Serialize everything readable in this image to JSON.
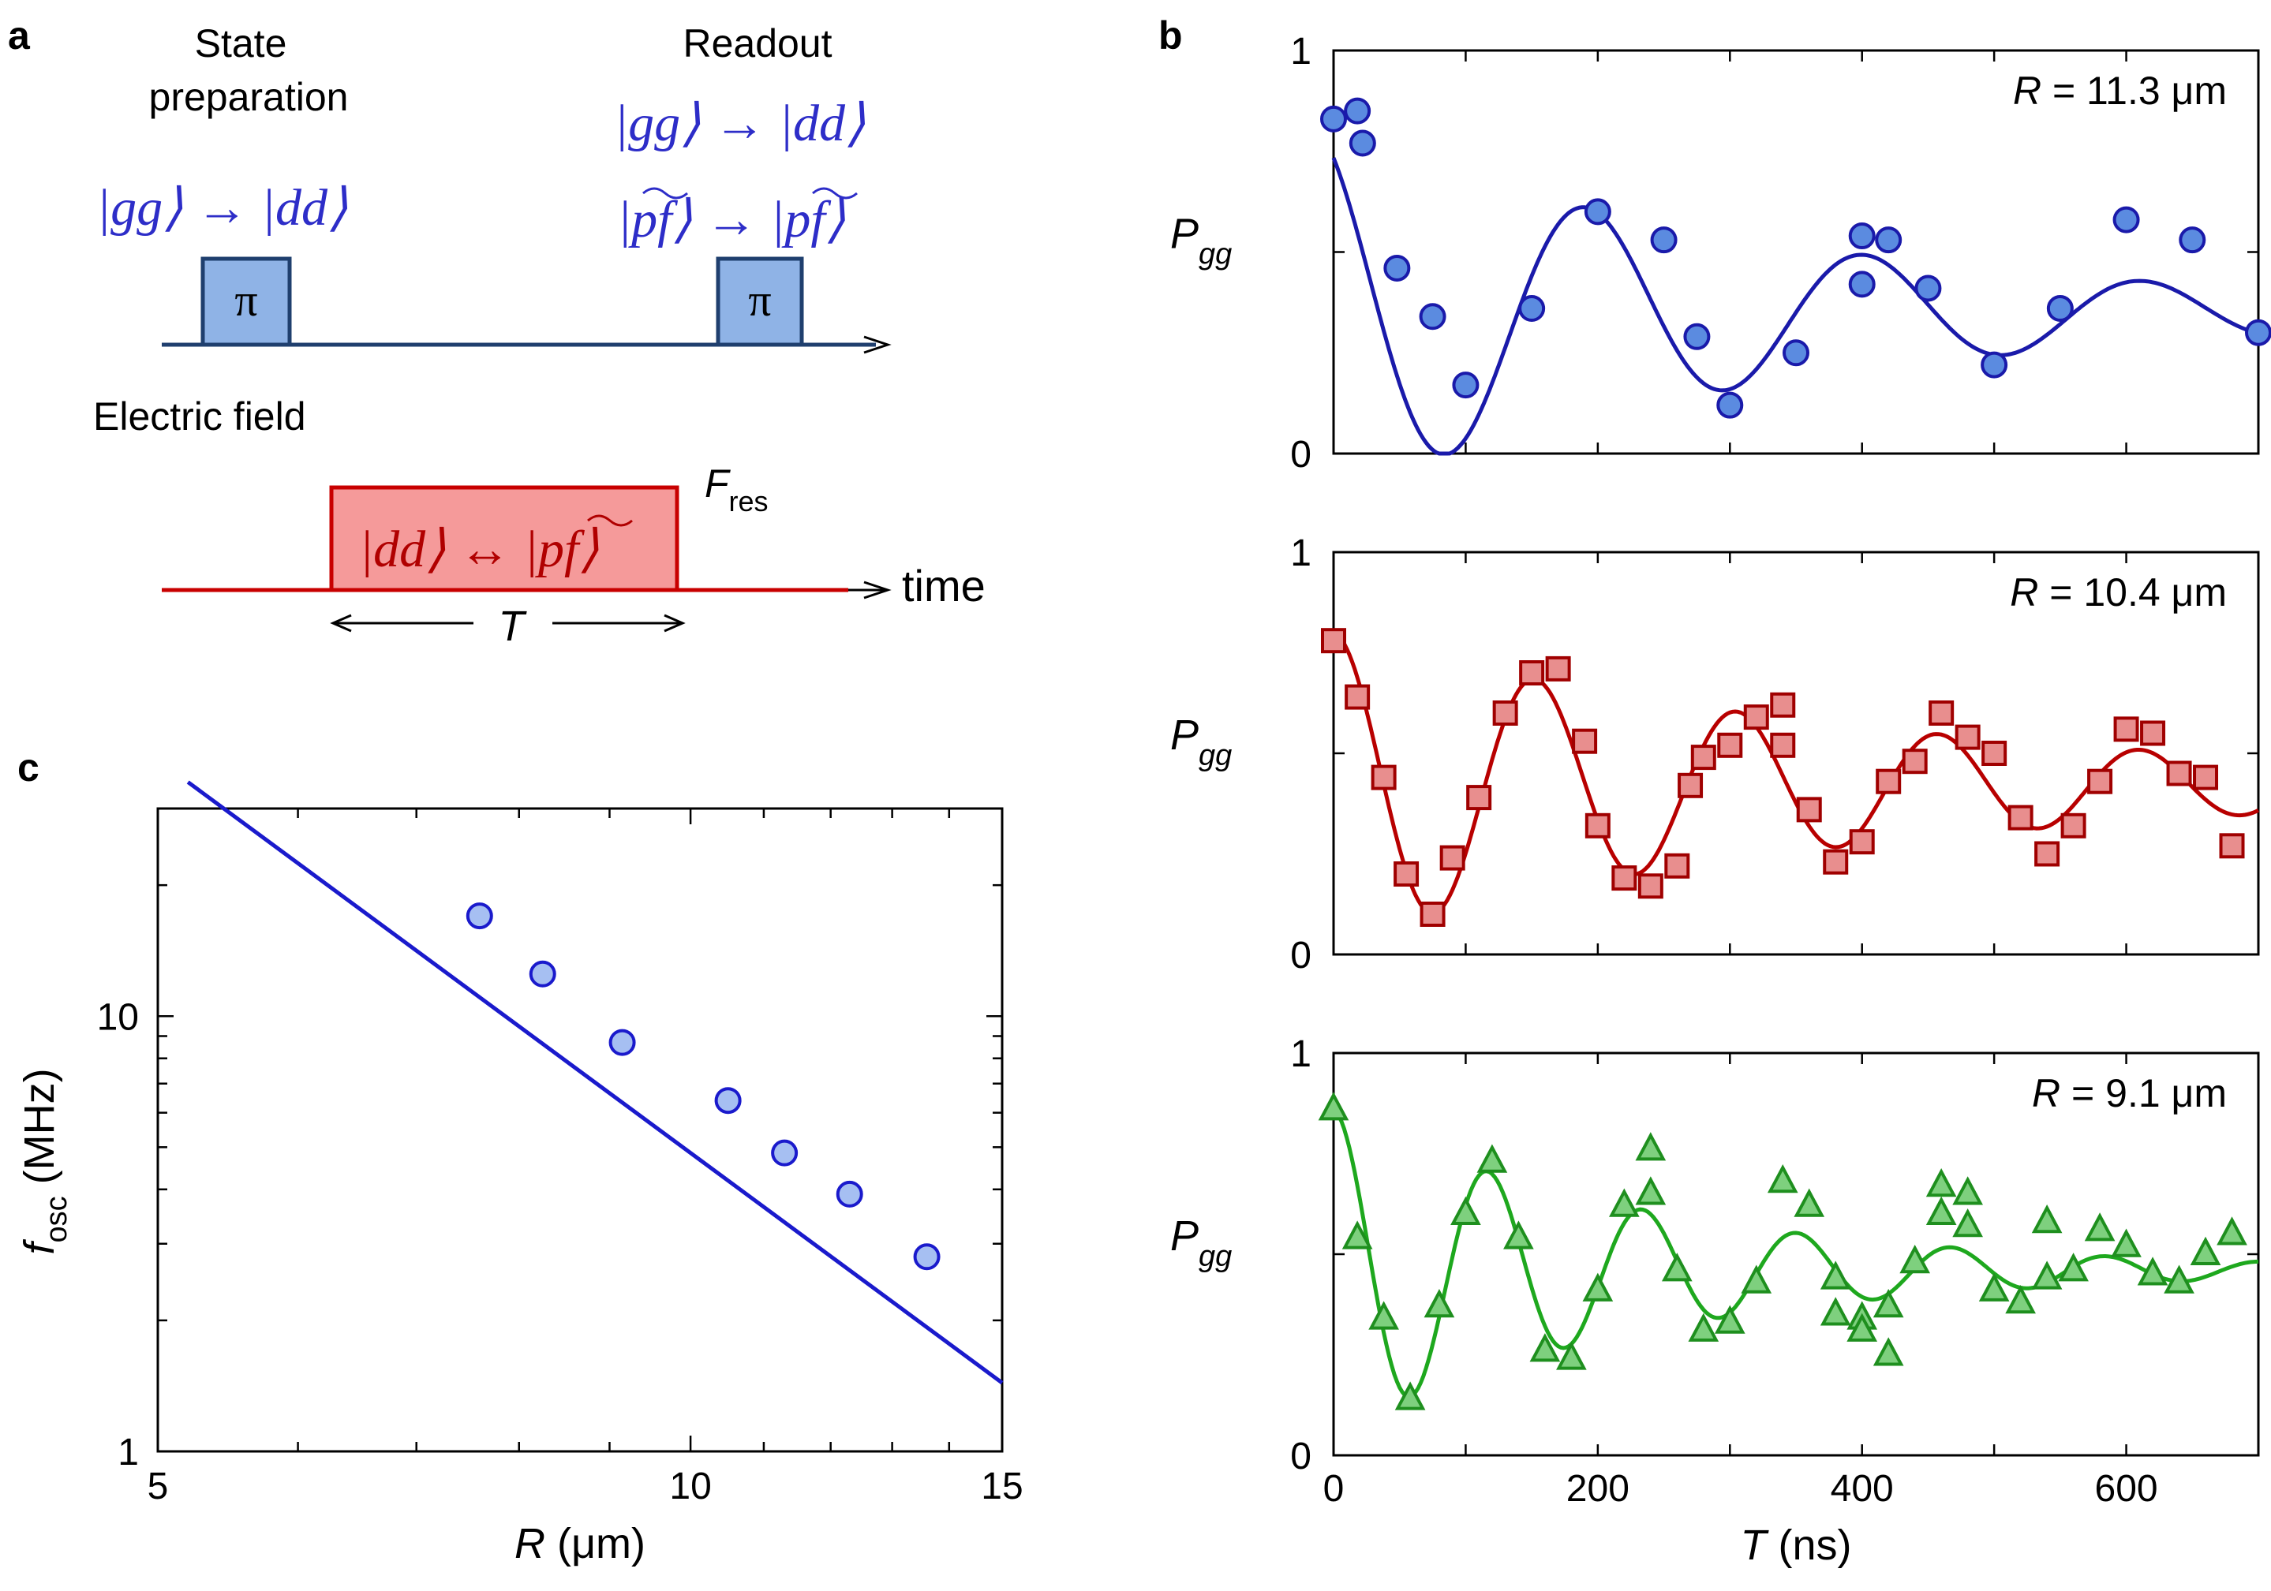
{
  "panel_labels": {
    "a": "a",
    "b": "b",
    "c": "c"
  },
  "panel_a": {
    "state_prep_line1": "State",
    "state_prep_line2": "preparation",
    "readout_label": "Readout",
    "prep_ket": "|gg⟩ → |dd⟩",
    "readout_ket1": "|gg⟩ → |dd⟩",
    "readout_ket2": "|pf⟩ → |pf⟩",
    "pulse_symbol": "π",
    "electric_field_label": "Electric field",
    "fres_label": "F",
    "fres_sub": "res",
    "coupling_ket": "|dd⟩ ↔ |pf⟩",
    "time_label": "time",
    "duration_label": "T",
    "colors": {
      "laser": "#2d2dc8",
      "field": "#c80000",
      "pulse_fill": "#8fb3e6",
      "field_fill": "#f59a9a"
    }
  },
  "chart_data": [
    {
      "id": "b1",
      "type": "scatter",
      "title": "R = 11.3 μm",
      "title_var": "R",
      "title_rest": " = 11.3 μm",
      "ylabel": "P",
      "ylabel_sub": "gg",
      "xlabel": "",
      "xlim": [
        0,
        700
      ],
      "ylim": [
        0,
        1
      ],
      "yticks": [
        0,
        1
      ],
      "marker": "circle",
      "marker_fill": "#5b8be0",
      "line_color": "#1a1aaa",
      "points": {
        "x": [
          0,
          18,
          22,
          48,
          75,
          100,
          150,
          200,
          250,
          275,
          300,
          350,
          400,
          400,
          420,
          450,
          500,
          550,
          600,
          650,
          700
        ],
        "y": [
          0.83,
          0.85,
          0.77,
          0.46,
          0.34,
          0.17,
          0.36,
          0.6,
          0.53,
          0.29,
          0.12,
          0.25,
          0.54,
          0.42,
          0.53,
          0.41,
          0.22,
          0.36,
          0.58,
          0.53,
          0.3
        ]
      },
      "fit": {
        "offset": 0.35,
        "amp": 0.45,
        "tau": 350,
        "freq_mhz": 0.00475,
        "phase": 0.55
      }
    },
    {
      "id": "b2",
      "type": "scatter",
      "title": "R = 10.4 μm",
      "title_var": "R",
      "title_rest": " = 10.4 μm",
      "ylabel": "P",
      "ylabel_sub": "gg",
      "xlabel": "",
      "xlim": [
        0,
        700
      ],
      "ylim": [
        0,
        1
      ],
      "yticks": [
        0,
        1
      ],
      "marker": "square",
      "marker_fill": "#e88e8e",
      "line_color": "#b80000",
      "points": {
        "x": [
          0,
          18,
          38,
          55,
          75,
          90,
          110,
          130,
          150,
          170,
          190,
          200,
          220,
          240,
          260,
          270,
          280,
          300,
          320,
          340,
          340,
          360,
          380,
          400,
          420,
          440,
          460,
          480,
          500,
          520,
          540,
          560,
          580,
          600,
          620,
          640,
          660,
          680
        ],
        "y": [
          0.78,
          0.64,
          0.44,
          0.2,
          0.1,
          0.24,
          0.39,
          0.6,
          0.7,
          0.71,
          0.53,
          0.32,
          0.19,
          0.17,
          0.22,
          0.42,
          0.49,
          0.52,
          0.59,
          0.62,
          0.52,
          0.36,
          0.23,
          0.28,
          0.43,
          0.48,
          0.6,
          0.54,
          0.5,
          0.34,
          0.25,
          0.32,
          0.43,
          0.56,
          0.55,
          0.45,
          0.44,
          0.27
        ]
      },
      "fit": {
        "offset": 0.42,
        "amp": 0.38,
        "tau": 420,
        "freq_mhz": 0.00655,
        "phase": 0.0
      }
    },
    {
      "id": "b3",
      "type": "scatter",
      "title": "R = 9.1 μm",
      "title_var": "R",
      "title_rest": " = 9.1 μm",
      "ylabel": "P",
      "ylabel_sub": "gg",
      "xlabel": "T (ns)",
      "xlabel_var": "T",
      "xlabel_rest": " (ns)",
      "xlim": [
        0,
        700
      ],
      "ylim": [
        0,
        1
      ],
      "yticks": [
        0,
        1
      ],
      "xticks": [
        0,
        200,
        400,
        600
      ],
      "marker": "triangle",
      "marker_fill": "#7ed07e",
      "line_color": "#1ea81e",
      "points": {
        "x": [
          0,
          18,
          38,
          58,
          80,
          100,
          120,
          140,
          160,
          180,
          200,
          220,
          240,
          240,
          260,
          280,
          300,
          320,
          340,
          360,
          380,
          380,
          400,
          400,
          420,
          420,
          440,
          460,
          460,
          480,
          480,
          500,
          520,
          540,
          540,
          560,
          580,
          600,
          620,
          640,
          660,
          680
        ],
        "y": [
          0.86,
          0.54,
          0.34,
          0.14,
          0.37,
          0.6,
          0.73,
          0.54,
          0.26,
          0.24,
          0.41,
          0.62,
          0.76,
          0.65,
          0.46,
          0.31,
          0.33,
          0.43,
          0.68,
          0.62,
          0.44,
          0.35,
          0.34,
          0.31,
          0.37,
          0.25,
          0.48,
          0.67,
          0.6,
          0.65,
          0.57,
          0.41,
          0.38,
          0.44,
          0.58,
          0.46,
          0.56,
          0.52,
          0.45,
          0.43,
          0.5,
          0.55
        ]
      },
      "fit": {
        "offset": 0.46,
        "amp": 0.4,
        "tau": 240,
        "freq_mhz": 0.00855,
        "phase": 0.0
      }
    },
    {
      "id": "c",
      "type": "scatter",
      "scale": "log-log",
      "title": "",
      "xlabel": "R (μm)",
      "xlabel_var": "R",
      "xlabel_rest": " (μm)",
      "ylabel": "f",
      "ylabel_sub": "osc",
      "ylabel_rest": " (MHz)",
      "xlim": [
        5,
        15
      ],
      "ylim": [
        1,
        30
      ],
      "xticks_labeled": [
        5,
        10,
        15
      ],
      "yticks_labeled": [
        1,
        10
      ],
      "marker": "circle",
      "marker_fill": "#a6bff2",
      "line_color": "#1a1acc",
      "points": {
        "x": [
          7.6,
          8.25,
          9.15,
          10.5,
          11.3,
          12.3,
          13.6
        ],
        "y": [
          17.0,
          12.5,
          8.7,
          6.4,
          4.85,
          3.9,
          2.8
        ]
      },
      "fit": {
        "power": -3,
        "x0": 5.2,
        "y0": 34.5
      }
    }
  ]
}
